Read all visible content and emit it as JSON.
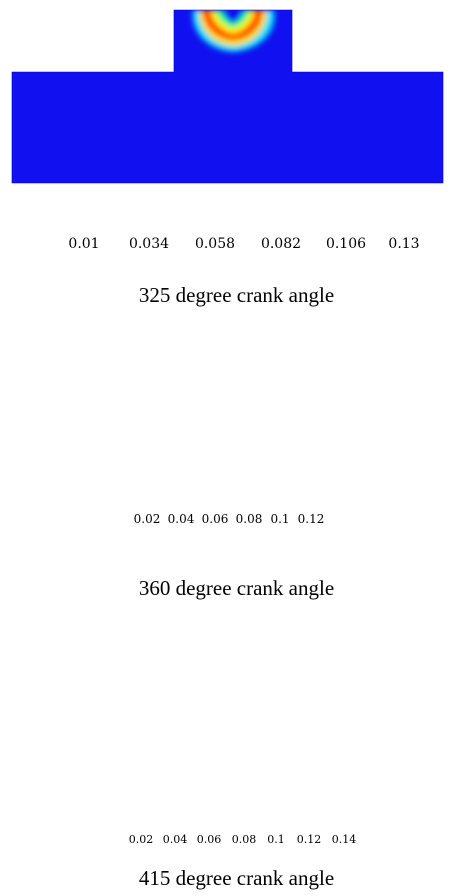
{
  "colors": {
    "field_low": "#1010f0",
    "field_high": "#ff2a00"
  },
  "panels": [
    {
      "caption": "325 degree crank angle",
      "colorbar": {
        "ticks": [
          "0.01",
          "0.034",
          "0.058",
          "0.082",
          "0.106",
          "0.13"
        ]
      }
    },
    {
      "caption": "360 degree crank angle",
      "colorbar": {
        "ticks": [
          "0.02",
          "0.04",
          "0.06",
          "0.08",
          "0.1",
          "0.12"
        ]
      }
    },
    {
      "caption": "415 degree crank angle",
      "colorbar": {
        "ticks": [
          "0.02",
          "0.04",
          "0.06",
          "0.08",
          "0.1",
          "0.12",
          "0.14"
        ]
      }
    }
  ]
}
